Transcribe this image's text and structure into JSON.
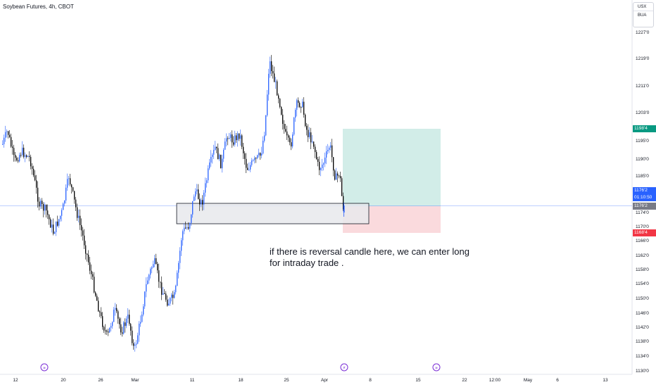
{
  "header": {
    "symbol_title": "Soybean Futures, 4h, CBOT"
  },
  "scale_buttons": {
    "currency": "USX",
    "unit": "BUA"
  },
  "note": {
    "line1": "if there is reversal candle here, we can enter long",
    "line2": "for intraday trade ."
  },
  "price_axis": {
    "ticks": [
      "1227'0",
      "1219'0",
      "1211'0",
      "1203'0",
      "1195'0",
      "1190'0",
      "1185'0",
      "1174'0",
      "1170'0",
      "1166'0",
      "1162'0",
      "1158'0",
      "1154'0",
      "1150'0",
      "1146'0",
      "1142'0",
      "1138'0",
      "1134'0",
      "1130'0"
    ]
  },
  "price_tags": {
    "target": "1198'4",
    "current_price": "1176'2",
    "countdown": "01:10:50",
    "entry": "1176'2",
    "stop": "1168'4"
  },
  "time_axis": {
    "labels": [
      "12",
      "20",
      "26",
      "Mar",
      "11",
      "18",
      "25",
      "Apr",
      "8",
      "15",
      "22",
      "12:00",
      "May",
      "6",
      "13"
    ]
  },
  "colors": {
    "up_candle": "#2962ff",
    "down_candle": "#000000",
    "target_zone": "#d2ede8",
    "stop_zone": "#fadadd",
    "target_tag": "#089981",
    "current_tag": "#2962ff",
    "stop_tag": "#f23645",
    "entry_tag": "#787b86",
    "event_icon": "#7b2ed6"
  },
  "event_markers": [
    "dividend-icon",
    "earnings-icon",
    "dividend-icon"
  ]
}
